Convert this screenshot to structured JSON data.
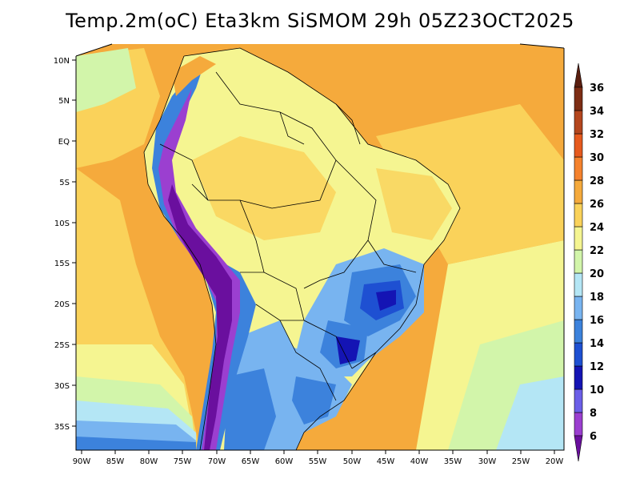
{
  "title": "Temp.2m(oC) Eta3km SiSMOM 29h 05Z23OCT2025",
  "lat_labels": [
    "10N",
    "5N",
    "EQ",
    "5S",
    "10S",
    "15S",
    "20S",
    "25S",
    "30S",
    "35S"
  ],
  "lon_labels": [
    "90W",
    "85W",
    "80W",
    "75W",
    "70W",
    "65W",
    "60W",
    "55W",
    "50W",
    "45W",
    "40W",
    "35W",
    "30W",
    "25W",
    "20W"
  ],
  "colorbar": {
    "labels": [
      "6",
      "8",
      "10",
      "12",
      "14",
      "16",
      "18",
      "20",
      "22",
      "24",
      "26",
      "28",
      "30",
      "32",
      "34",
      "36"
    ],
    "colors": [
      "#6a0f9e",
      "#9b3fd0",
      "#6b5fe8",
      "#1414b4",
      "#1e50d2",
      "#3c82dc",
      "#78b4f0",
      "#b4e6f5",
      "#d2f5aa",
      "#f5f591",
      "#fad25a",
      "#f5aa3c",
      "#f5822d",
      "#e65a1e",
      "#b4461e",
      "#7d2d14",
      "#5a1e0f"
    ]
  }
}
